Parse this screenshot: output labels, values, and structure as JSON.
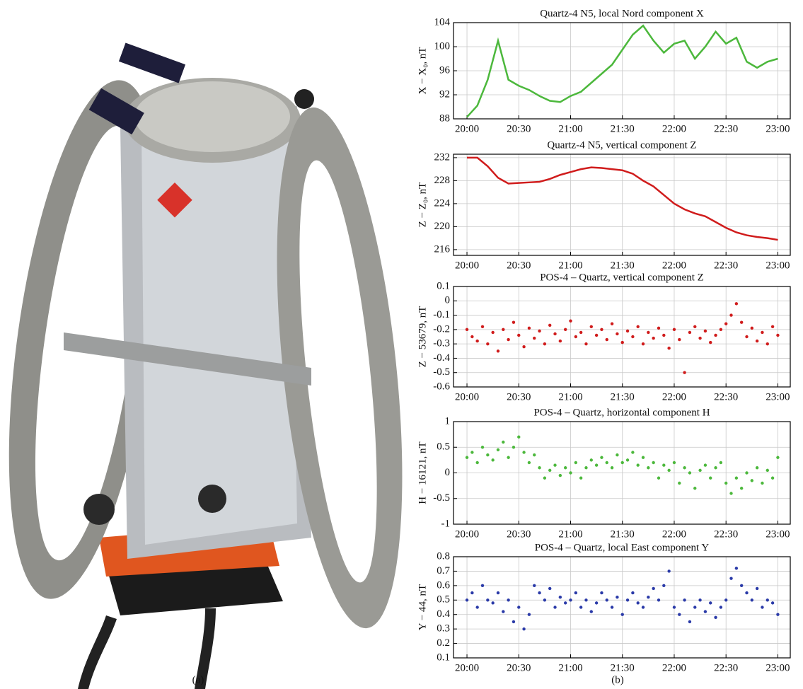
{
  "captions": [
    "(a)",
    "(b)"
  ],
  "chart_data": [
    {
      "type": "line",
      "title": "Quartz-4 N5, local Nord component X",
      "ylabel": "X − X₀, nT",
      "color": "#4cb83c",
      "grid": true,
      "x": [
        20,
        20.1,
        20.2,
        20.3,
        20.4,
        20.5,
        20.6,
        20.7,
        20.8,
        20.9,
        21,
        21.1,
        21.2,
        21.3,
        21.4,
        21.5,
        21.6,
        21.7,
        21.8,
        21.9,
        22,
        22.1,
        22.2,
        22.3,
        22.4,
        22.5,
        22.6,
        22.7,
        22.8,
        22.9,
        23
      ],
      "values": [
        88.3,
        90.2,
        94.5,
        101,
        94.5,
        93.5,
        92.8,
        91.8,
        91,
        90.8,
        91.8,
        92.5,
        94,
        95.5,
        97,
        99.5,
        102,
        103.5,
        101,
        99,
        100.5,
        101,
        98,
        100,
        102.5,
        100.5,
        101.5,
        97.5,
        96.5,
        97.5,
        98
      ],
      "xlim": [
        19.87,
        23.12
      ],
      "xticks": [
        {
          "value": 20,
          "label": "20:00"
        },
        {
          "value": 20.5,
          "label": "20:30"
        },
        {
          "value": 21,
          "label": "21:00"
        },
        {
          "value": 21.5,
          "label": "21:30"
        },
        {
          "value": 22,
          "label": "22:00"
        },
        {
          "value": 22.5,
          "label": "22:30"
        },
        {
          "value": 23,
          "label": "23:00"
        }
      ],
      "ylim": [
        88,
        104
      ],
      "yticks": [
        88,
        92,
        96,
        100,
        104
      ]
    },
    {
      "type": "line",
      "title": "Quartz-4 N5, vertical component Z",
      "ylabel": "Z − Z₀, nT",
      "color": "#d01c1c",
      "grid": true,
      "x": [
        20,
        20.1,
        20.2,
        20.3,
        20.4,
        20.5,
        20.6,
        20.7,
        20.8,
        20.9,
        21,
        21.1,
        21.2,
        21.3,
        21.4,
        21.5,
        21.6,
        21.7,
        21.8,
        21.9,
        22,
        22.1,
        22.2,
        22.3,
        22.4,
        22.5,
        22.6,
        22.7,
        22.8,
        22.9,
        23
      ],
      "values": [
        232,
        232,
        230.5,
        228.5,
        227.5,
        227.6,
        227.7,
        227.8,
        228.3,
        229,
        229.5,
        230,
        230.3,
        230.2,
        230,
        229.8,
        229.2,
        228,
        227,
        225.5,
        224,
        223,
        222.3,
        221.8,
        220.8,
        219.8,
        219,
        218.5,
        218.2,
        218,
        217.7
      ],
      "xlim": [
        19.87,
        23.12
      ],
      "xticks": [
        {
          "value": 20,
          "label": "20:00"
        },
        {
          "value": 20.5,
          "label": "20:30"
        },
        {
          "value": 21,
          "label": "21:00"
        },
        {
          "value": 21.5,
          "label": "21:30"
        },
        {
          "value": 22,
          "label": "22:00"
        },
        {
          "value": 22.5,
          "label": "22:30"
        },
        {
          "value": 23,
          "label": "23:00"
        }
      ],
      "ylim": [
        215,
        232.6
      ],
      "yticks": [
        216,
        220,
        224,
        228,
        232
      ]
    },
    {
      "type": "scatter",
      "title": "POS-4 – Quartz, vertical component Z",
      "ylabel": "Z − 53679, nT",
      "color": "#d01c1c",
      "grid": true,
      "x": [
        20,
        20.05,
        20.1,
        20.15,
        20.2,
        20.25,
        20.3,
        20.35,
        20.4,
        20.45,
        20.5,
        20.55,
        20.6,
        20.65,
        20.7,
        20.75,
        20.8,
        20.85,
        20.9,
        20.95,
        21,
        21.05,
        21.1,
        21.15,
        21.2,
        21.25,
        21.3,
        21.35,
        21.4,
        21.45,
        21.5,
        21.55,
        21.6,
        21.65,
        21.7,
        21.75,
        21.8,
        21.85,
        21.9,
        21.95,
        22,
        22.05,
        22.1,
        22.15,
        22.2,
        22.25,
        22.3,
        22.35,
        22.4,
        22.45,
        22.5,
        22.55,
        22.6,
        22.65,
        22.7,
        22.75,
        22.8,
        22.85,
        22.9,
        22.95,
        23
      ],
      "values": [
        -0.2,
        -0.25,
        -0.28,
        -0.18,
        -0.3,
        -0.22,
        -0.35,
        -0.2,
        -0.27,
        -0.15,
        -0.24,
        -0.32,
        -0.19,
        -0.26,
        -0.21,
        -0.3,
        -0.17,
        -0.23,
        -0.28,
        -0.2,
        -0.14,
        -0.25,
        -0.22,
        -0.3,
        -0.18,
        -0.24,
        -0.2,
        -0.27,
        -0.16,
        -0.23,
        -0.29,
        -0.21,
        -0.25,
        -0.18,
        -0.3,
        -0.22,
        -0.26,
        -0.19,
        -0.24,
        -0.33,
        -0.2,
        -0.27,
        -0.5,
        -0.22,
        -0.18,
        -0.26,
        -0.21,
        -0.29,
        -0.24,
        -0.2,
        -0.16,
        -0.1,
        -0.02,
        -0.15,
        -0.25,
        -0.19,
        -0.28,
        -0.22,
        -0.3,
        -0.18,
        -0.24
      ],
      "xlim": [
        19.87,
        23.12
      ],
      "xticks": [
        {
          "value": 20,
          "label": "20:00"
        },
        {
          "value": 20.5,
          "label": "20:30"
        },
        {
          "value": 21,
          "label": "21:00"
        },
        {
          "value": 21.5,
          "label": "21:30"
        },
        {
          "value": 22,
          "label": "22:00"
        },
        {
          "value": 22.5,
          "label": "22:30"
        },
        {
          "value": 23,
          "label": "23:00"
        }
      ],
      "ylim": [
        -0.6,
        0.1
      ],
      "yticks": [
        0.1,
        0,
        -0.1,
        -0.2,
        -0.3,
        -0.4,
        -0.5,
        -0.6
      ]
    },
    {
      "type": "scatter",
      "title": "POS-4 – Quartz, horizontal component H",
      "ylabel": "H − 16121, nT",
      "color": "#4cb83c",
      "grid": true,
      "x": [
        20,
        20.05,
        20.1,
        20.15,
        20.2,
        20.25,
        20.3,
        20.35,
        20.4,
        20.45,
        20.5,
        20.55,
        20.6,
        20.65,
        20.7,
        20.75,
        20.8,
        20.85,
        20.9,
        20.95,
        21,
        21.05,
        21.1,
        21.15,
        21.2,
        21.25,
        21.3,
        21.35,
        21.4,
        21.45,
        21.5,
        21.55,
        21.6,
        21.65,
        21.7,
        21.75,
        21.8,
        21.85,
        21.9,
        21.95,
        22,
        22.05,
        22.1,
        22.15,
        22.2,
        22.25,
        22.3,
        22.35,
        22.4,
        22.45,
        22.5,
        22.55,
        22.6,
        22.65,
        22.7,
        22.75,
        22.8,
        22.85,
        22.9,
        22.95,
        23
      ],
      "values": [
        0.3,
        0.4,
        0.2,
        0.5,
        0.35,
        0.25,
        0.45,
        0.6,
        0.3,
        0.5,
        0.7,
        0.4,
        0.2,
        0.35,
        0.1,
        -0.1,
        0.05,
        0.15,
        -0.05,
        0.1,
        0,
        0.2,
        -0.1,
        0.1,
        0.25,
        0.15,
        0.3,
        0.2,
        0.1,
        0.35,
        0.2,
        0.25,
        0.4,
        0.15,
        0.3,
        0.1,
        0.2,
        -0.1,
        0.15,
        0.05,
        0.2,
        -0.2,
        0.1,
        0,
        -0.3,
        0.05,
        0.15,
        -0.1,
        0.1,
        0.2,
        -0.2,
        -0.4,
        -0.1,
        -0.3,
        0,
        -0.15,
        0.1,
        -0.2,
        0.05,
        -0.1,
        0.3
      ],
      "xlim": [
        19.87,
        23.12
      ],
      "xticks": [
        {
          "value": 20,
          "label": "20:00"
        },
        {
          "value": 20.5,
          "label": "20:30"
        },
        {
          "value": 21,
          "label": "21:00"
        },
        {
          "value": 21.5,
          "label": "21:30"
        },
        {
          "value": 22,
          "label": "22:00"
        },
        {
          "value": 22.5,
          "label": "22:30"
        },
        {
          "value": 23,
          "label": "23:00"
        }
      ],
      "ylim": [
        -1,
        1
      ],
      "yticks": [
        1,
        0.5,
        0,
        -0.5,
        -1
      ]
    },
    {
      "type": "scatter",
      "title": "POS-4 – Quartz, local East component Y",
      "ylabel": "Y − 44, nT",
      "color": "#2a3aa8",
      "grid": true,
      "x": [
        20,
        20.05,
        20.1,
        20.15,
        20.2,
        20.25,
        20.3,
        20.35,
        20.4,
        20.45,
        20.5,
        20.55,
        20.6,
        20.65,
        20.7,
        20.75,
        20.8,
        20.85,
        20.9,
        20.95,
        21,
        21.05,
        21.1,
        21.15,
        21.2,
        21.25,
        21.3,
        21.35,
        21.4,
        21.45,
        21.5,
        21.55,
        21.6,
        21.65,
        21.7,
        21.75,
        21.8,
        21.85,
        21.9,
        21.95,
        22,
        22.05,
        22.1,
        22.15,
        22.2,
        22.25,
        22.3,
        22.35,
        22.4,
        22.45,
        22.5,
        22.55,
        22.6,
        22.65,
        22.7,
        22.75,
        22.8,
        22.85,
        22.9,
        22.95,
        23
      ],
      "values": [
        0.5,
        0.55,
        0.45,
        0.6,
        0.5,
        0.48,
        0.55,
        0.42,
        0.5,
        0.35,
        0.45,
        0.3,
        0.4,
        0.6,
        0.55,
        0.5,
        0.58,
        0.45,
        0.52,
        0.48,
        0.5,
        0.55,
        0.45,
        0.5,
        0.42,
        0.48,
        0.55,
        0.5,
        0.45,
        0.52,
        0.4,
        0.5,
        0.55,
        0.48,
        0.45,
        0.52,
        0.58,
        0.5,
        0.6,
        0.7,
        0.45,
        0.4,
        0.5,
        0.35,
        0.45,
        0.5,
        0.42,
        0.48,
        0.38,
        0.45,
        0.5,
        0.65,
        0.72,
        0.6,
        0.55,
        0.5,
        0.58,
        0.45,
        0.5,
        0.48,
        0.4
      ],
      "xlim": [
        19.87,
        23.12
      ],
      "xticks": [
        {
          "value": 20,
          "label": "20:00"
        },
        {
          "value": 20.5,
          "label": "20:30"
        },
        {
          "value": 21,
          "label": "21:00"
        },
        {
          "value": 21.5,
          "label": "21:30"
        },
        {
          "value": 22,
          "label": "22:00"
        },
        {
          "value": 22.5,
          "label": "22:30"
        },
        {
          "value": 23,
          "label": "23:00"
        }
      ],
      "ylim": [
        0.1,
        0.8
      ],
      "yticks": [
        0.8,
        0.7,
        0.6,
        0.5,
        0.4,
        0.3,
        0.2,
        0.1
      ]
    }
  ]
}
